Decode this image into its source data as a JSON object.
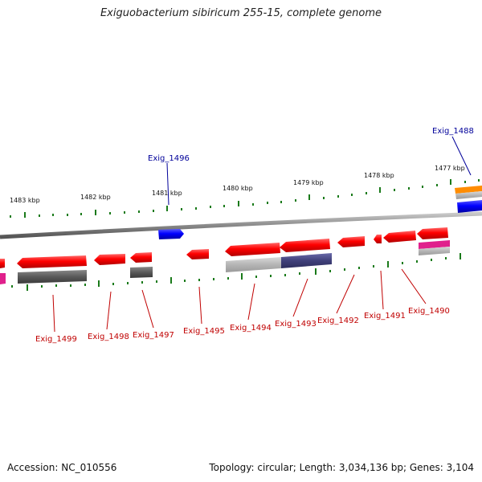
{
  "title": "Exiguobacterium sibiricum 255-15, complete genome",
  "footer": {
    "accession": "Accession: NC_010556",
    "summary": "Topology: circular; Length: 3,034,136 bp; Genes: 3,104"
  },
  "ruler": {
    "ticks": [
      "1483 kbp",
      "1482 kbp",
      "1481 kbp",
      "1480 kbp",
      "1479 kbp",
      "1478 kbp",
      "1477 kbp"
    ]
  },
  "genes": {
    "plus_strand": [
      "Exig_1496",
      "Exig_1488"
    ],
    "minus_strand": [
      "Exig_1499",
      "Exig_1498",
      "Exig_1497",
      "Exig_1495",
      "Exig_1494",
      "Exig_1493",
      "Exig_1492",
      "Exig_1491",
      "Exig_1490"
    ]
  },
  "colors": {
    "forward_gene": "#0000ee",
    "reverse_gene": "#ee0000",
    "backbone": "#888888",
    "tick": "#1a7a1a",
    "label_red": "#c00000",
    "label_blue": "#00009a"
  }
}
